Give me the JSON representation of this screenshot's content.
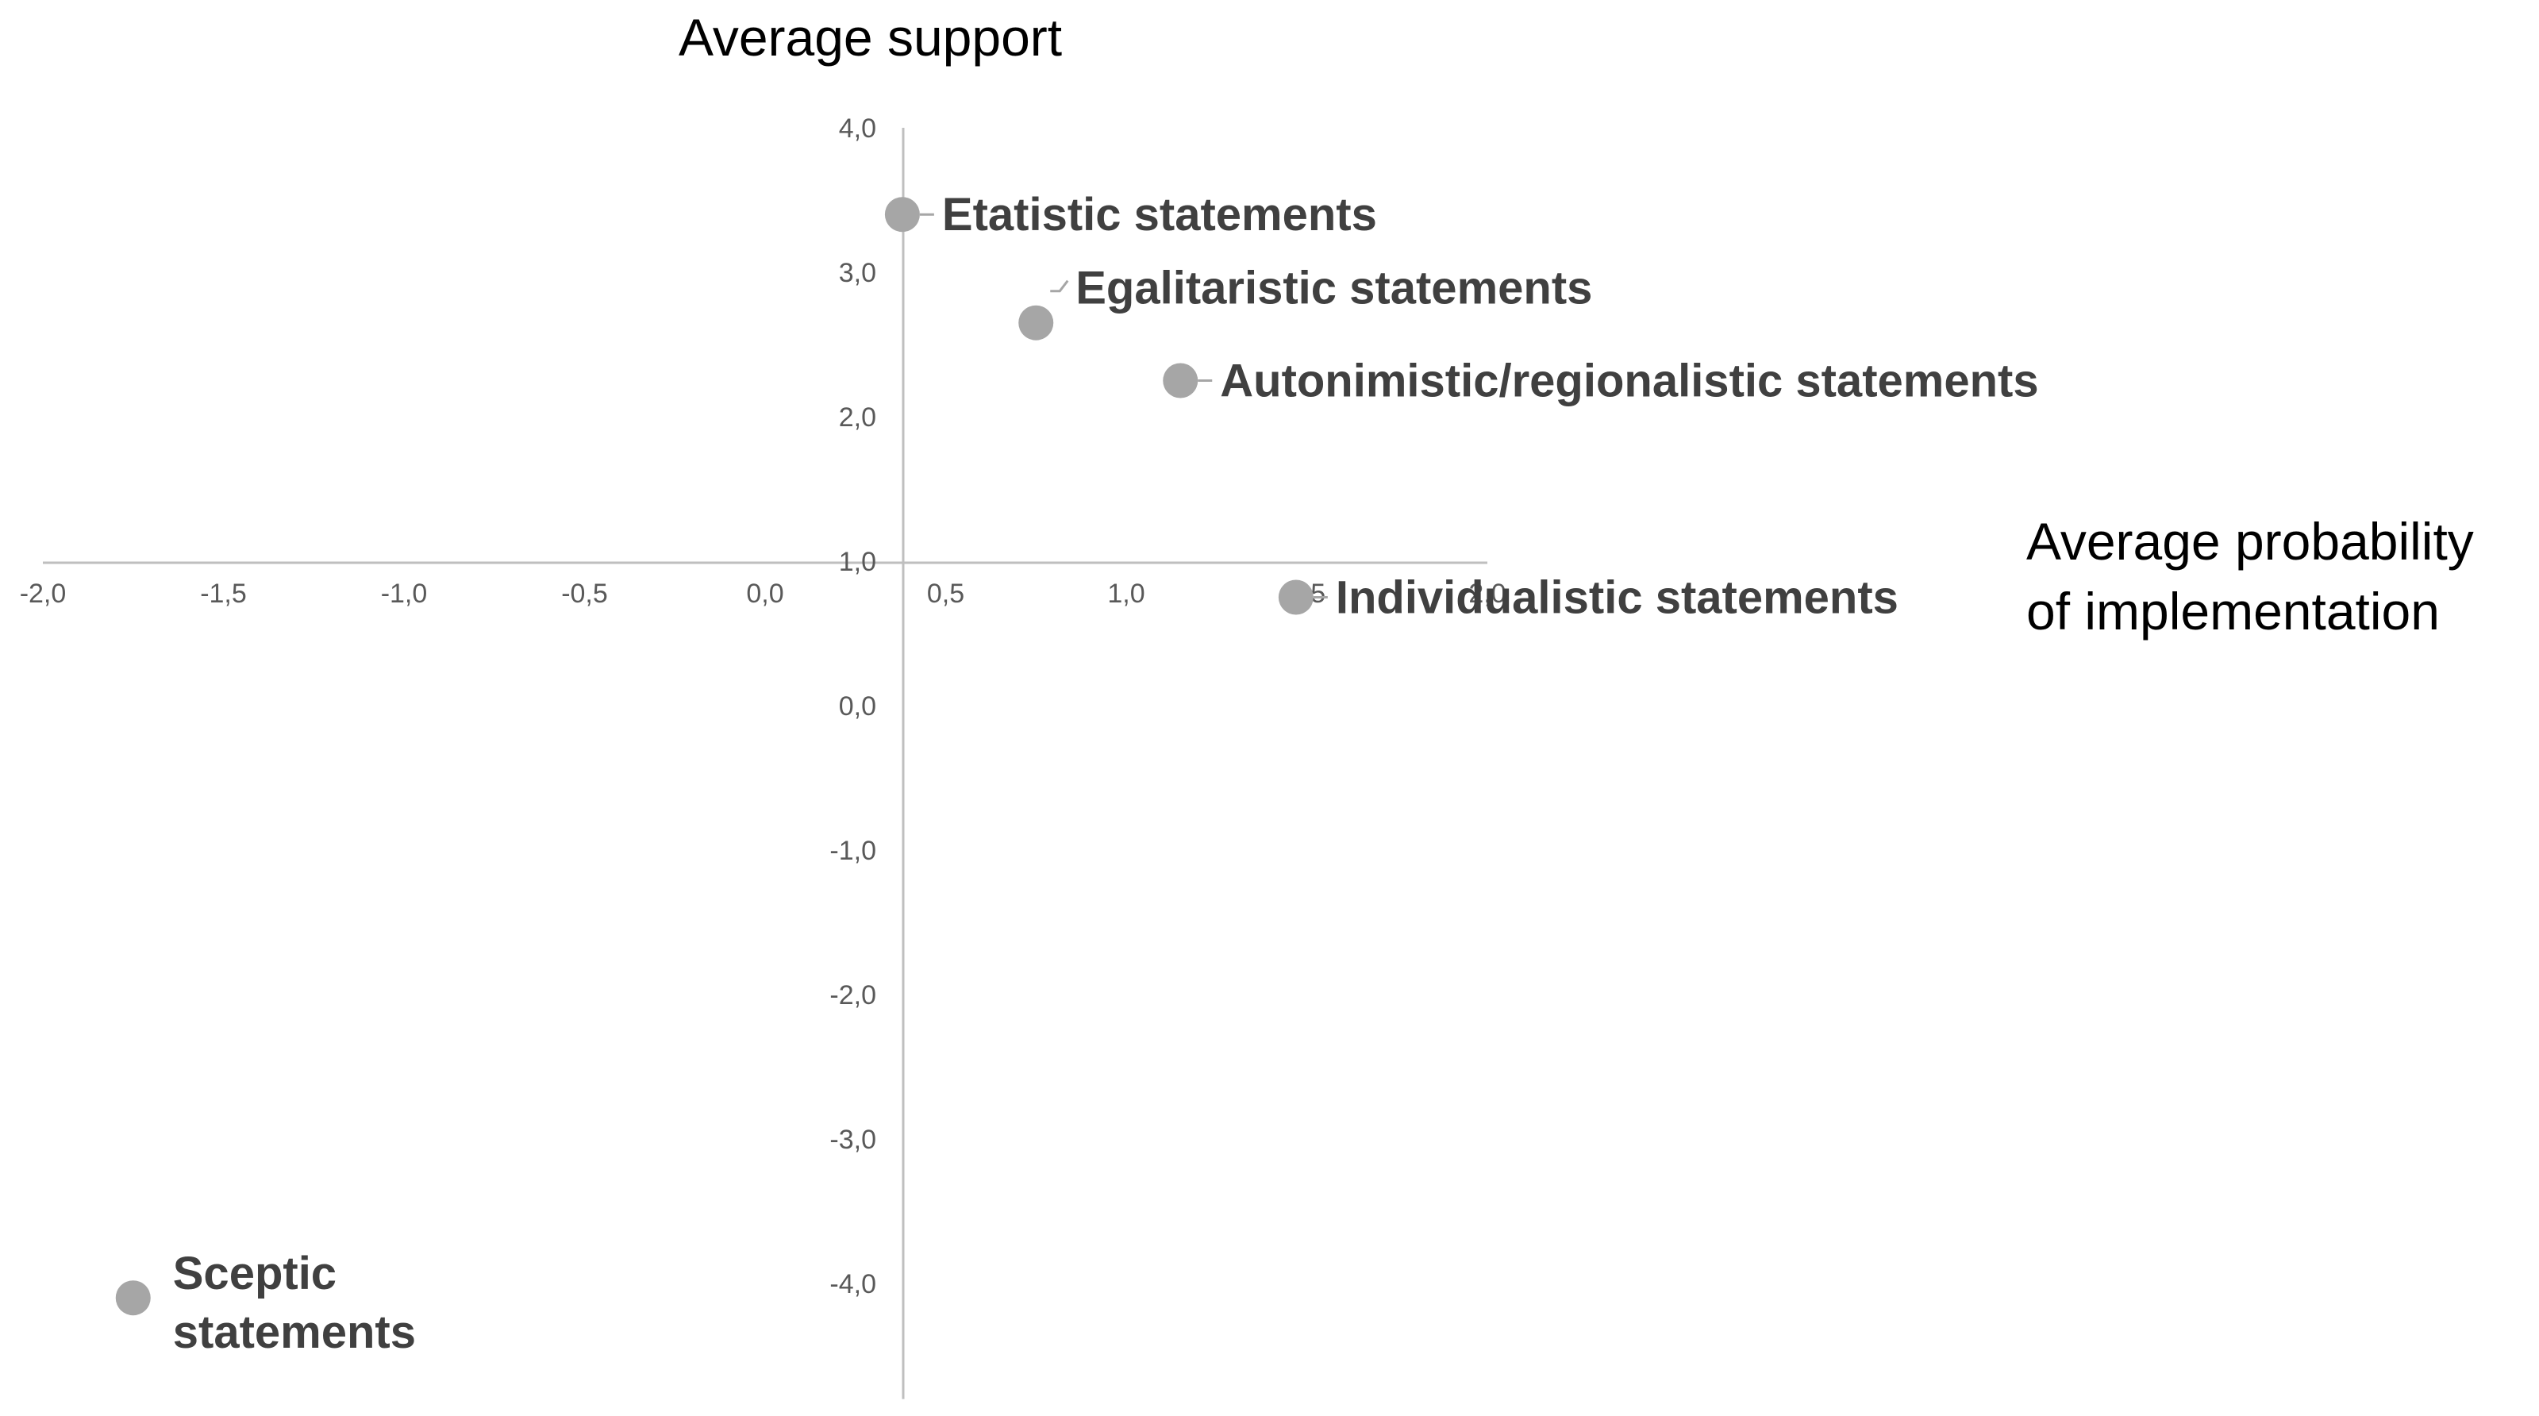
{
  "chart_data": {
    "type": "scatter",
    "title": "",
    "xlabel": "Average probability of implementation",
    "ylabel": "Average support",
    "xlim": [
      -2.0,
      2.0
    ],
    "ylim": [
      -4.8,
      4.0
    ],
    "x_ticks": [
      -2.0,
      -1.5,
      -1.0,
      -0.5,
      0.0,
      0.5,
      1.0,
      1.5,
      2.0
    ],
    "x_tick_labels": [
      "-2,0",
      "-1,5",
      "-1,0",
      "-0,5",
      "0,0",
      "0,5",
      "1,0",
      "1,5",
      "2,0"
    ],
    "y_ticks": [
      4.0,
      3.0,
      2.0,
      1.0,
      0.0,
      -1.0,
      -2.0,
      -3.0,
      -4.0
    ],
    "y_tick_labels": [
      "4,0",
      "3,0",
      "2,0",
      "1,0",
      "0,0",
      "-1,0",
      "-2,0",
      "-3,0",
      "-4,0"
    ],
    "grid": false,
    "legend": "none",
    "point_color": "#a6a6a6",
    "points": [
      {
        "x": 0.38,
        "y": 3.4,
        "label": "Etatistic statements"
      },
      {
        "x": 0.75,
        "y": 2.65,
        "label": "Egalitaristic statements"
      },
      {
        "x": 1.15,
        "y": 2.25,
        "label": "Autonimistic/regionalistic statements"
      },
      {
        "x": 1.47,
        "y": 0.75,
        "label": "Individualistic statements"
      },
      {
        "x": -1.75,
        "y": -4.1,
        "label": "Sceptic statements"
      }
    ]
  }
}
